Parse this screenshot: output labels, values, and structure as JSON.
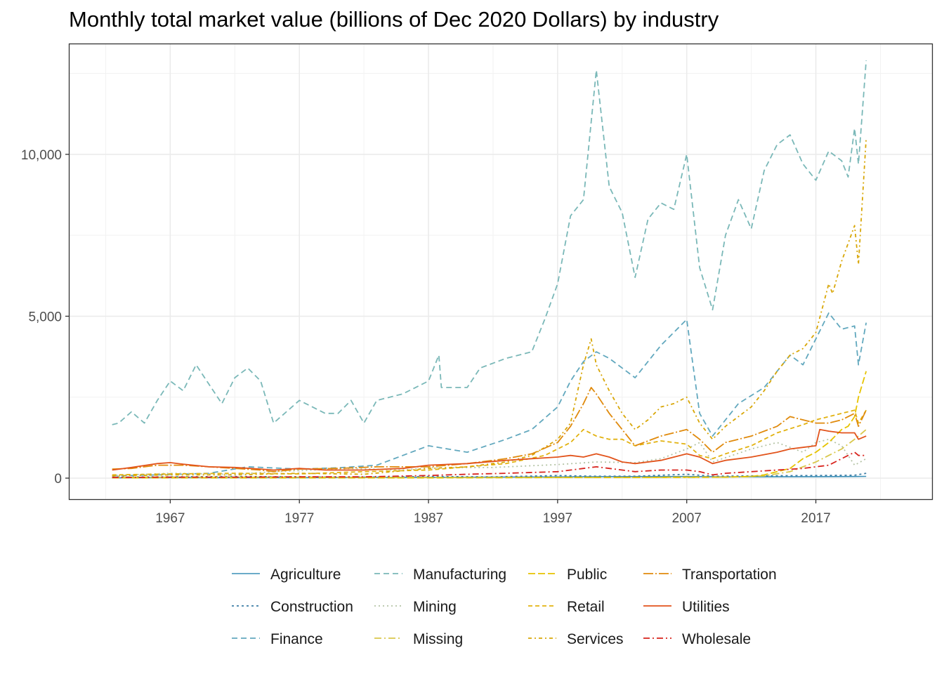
{
  "chart_data": {
    "type": "line",
    "title": "Monthly total market value (billions of Dec 2020 Dollars) by industry",
    "xlabel": "",
    "ylabel": "",
    "xlim": [
      1959.2,
      2026.0
    ],
    "ylim": [
      -650,
      13400
    ],
    "x_ticks": [
      1967,
      1977,
      1987,
      1997,
      2007,
      2017
    ],
    "x_tick_labels": [
      "1967",
      "1977",
      "1987",
      "1997",
      "2007",
      "2017"
    ],
    "y_ticks": [
      0,
      5000,
      10000
    ],
    "y_tick_labels": [
      "0",
      "5,000",
      "10,000"
    ],
    "grid": true,
    "legend_position": "bottom",
    "series": [
      {
        "name": "Agriculture",
        "color": "#3a8fb7",
        "dash": "",
        "width": 1.6,
        "x": [
          1962.5,
          1967,
          1977,
          1987,
          1997,
          2000,
          2007,
          2010,
          2017,
          2020,
          2020.9
        ],
        "y": [
          10,
          15,
          15,
          25,
          40,
          45,
          50,
          40,
          45,
          50,
          55
        ]
      },
      {
        "name": "Construction",
        "color": "#3d7ea6",
        "dash": "3,4",
        "width": 1.8,
        "x": [
          1962.5,
          1967,
          1972,
          1977,
          1982,
          1987,
          1992,
          1997,
          2000,
          2003,
          2007,
          2009,
          2012,
          2017,
          2020,
          2020.9
        ],
        "y": [
          30,
          40,
          50,
          40,
          30,
          50,
          40,
          80,
          60,
          60,
          120,
          60,
          70,
          80,
          90,
          150
        ]
      },
      {
        "name": "Finance",
        "color": "#62a8be",
        "dash": "8,5",
        "width": 1.8,
        "x": [
          1962.5,
          1966,
          1970,
          1973,
          1977,
          1980,
          1983,
          1987,
          1990,
          1993,
          1995,
          1997,
          1998,
          1999,
          2000,
          2001,
          2002,
          2003,
          2005,
          2007,
          2008,
          2009,
          2011,
          2013,
          2015,
          2016,
          2018,
          2019,
          2020,
          2020.3,
          2020.9
        ],
        "y": [
          70,
          100,
          150,
          350,
          280,
          320,
          400,
          1000,
          800,
          1200,
          1500,
          2200,
          3000,
          3600,
          3900,
          3700,
          3400,
          3100,
          4100,
          4900,
          2000,
          1300,
          2300,
          2800,
          3800,
          3500,
          5100,
          4600,
          4700,
          3500,
          4800
        ]
      },
      {
        "name": "Manufacturing",
        "color": "#7ab8b8",
        "dash": "8,5",
        "width": 1.8,
        "x": [
          1962.5,
          1963,
          1964,
          1965,
          1966,
          1967,
          1968,
          1969,
          1970,
          1971,
          1972,
          1973,
          1974,
          1975,
          1977,
          1979,
          1980,
          1981,
          1982,
          1983,
          1985,
          1987,
          1987.8,
          1988,
          1990,
          1991,
          1993,
          1995,
          1996,
          1997,
          1998,
          1999,
          2000,
          2001,
          2002,
          2003,
          2004,
          2005,
          2006,
          2007,
          2008,
          2009,
          2010,
          2011,
          2012,
          2013,
          2014,
          2015,
          2016,
          2017,
          2018,
          2019,
          2019.5,
          2020,
          2020.3,
          2020.9
        ],
        "y": [
          1650,
          1700,
          2050,
          1700,
          2400,
          3000,
          2700,
          3500,
          2900,
          2300,
          3100,
          3400,
          3000,
          1700,
          2400,
          2000,
          2000,
          2400,
          1700,
          2400,
          2600,
          3000,
          3800,
          2800,
          2800,
          3400,
          3700,
          3900,
          4900,
          6000,
          8100,
          8600,
          12600,
          9000,
          8200,
          6200,
          8000,
          8500,
          8300,
          10000,
          6500,
          5200,
          7500,
          8600,
          7700,
          9500,
          10300,
          10600,
          9700,
          9200,
          10100,
          9800,
          9300,
          10800,
          9700,
          12900
        ]
      },
      {
        "name": "Mining",
        "color": "#b5c4a6",
        "dash": "2,4",
        "width": 1.8,
        "x": [
          1962.5,
          1967,
          1972,
          1975,
          1977,
          1981,
          1985,
          1987,
          1992,
          1997,
          2000,
          2003,
          2005,
          2007,
          2008,
          2009,
          2012,
          2014,
          2016,
          2017,
          2018,
          2019,
          2020,
          2020.9
        ],
        "y": [
          80,
          150,
          120,
          200,
          230,
          300,
          250,
          320,
          330,
          420,
          500,
          480,
          600,
          900,
          1100,
          500,
          900,
          1100,
          800,
          1100,
          1200,
          1000,
          400,
          600
        ]
      },
      {
        "name": "Missing",
        "color": "#d9c84b",
        "dash": "10,4,2,4",
        "width": 1.8,
        "x": [
          1962.5,
          1967,
          1977,
          1987,
          1997,
          2007,
          2010,
          2013,
          2015,
          2017,
          2018,
          2019,
          2020,
          2020.9
        ],
        "y": [
          20,
          30,
          30,
          20,
          20,
          20,
          30,
          70,
          200,
          500,
          700,
          900,
          1200,
          1500
        ]
      },
      {
        "name": "Public",
        "color": "#e6c300",
        "dash": "10,4",
        "width": 1.8,
        "x": [
          1962.5,
          1967,
          1977,
          1987,
          1997,
          2003,
          2007,
          2010,
          2012,
          2013,
          2014,
          2015,
          2016,
          2017,
          2018,
          2018.5,
          2019,
          2019.5,
          2020,
          2020.3,
          2020.9
        ],
        "y": [
          10,
          10,
          10,
          10,
          20,
          20,
          30,
          30,
          50,
          100,
          200,
          300,
          600,
          800,
          1100,
          1300,
          1500,
          1600,
          1900,
          2500,
          3300
        ]
      },
      {
        "name": "Retail",
        "color": "#e2b210",
        "dash": "6,4",
        "width": 1.8,
        "x": [
          1962.5,
          1967,
          1972,
          1977,
          1982,
          1987,
          1990,
          1993,
          1996,
          1998,
          1999,
          2000,
          2001,
          2002,
          2003,
          2005,
          2007,
          2008,
          2009,
          2010,
          2012,
          2014,
          2016,
          2017,
          2018,
          2019,
          2020,
          2020.3,
          2020.9
        ],
        "y": [
          100,
          130,
          150,
          130,
          200,
          250,
          350,
          450,
          700,
          1100,
          1500,
          1300,
          1200,
          1200,
          1000,
          1150,
          1050,
          700,
          600,
          750,
          1000,
          1400,
          1650,
          1800,
          1900,
          2000,
          2100,
          1700,
          2100
        ]
      },
      {
        "name": "Services",
        "color": "#d8a606",
        "dash": "5,4,2,4",
        "width": 1.8,
        "x": [
          1962.5,
          1967,
          1972,
          1977,
          1982,
          1987,
          1990,
          1993,
          1995,
          1997,
          1998,
          1999,
          1999.6,
          2000,
          2001,
          2002,
          2003,
          2004,
          2005,
          2006,
          2007,
          2008,
          2009,
          2010,
          2012,
          2013,
          2014,
          2015,
          2016,
          2017,
          2018,
          2018.3,
          2019,
          2020,
          2020.3,
          2020.9
        ],
        "y": [
          70,
          100,
          100,
          150,
          120,
          300,
          350,
          500,
          700,
          1200,
          1700,
          3500,
          4300,
          3500,
          2700,
          2000,
          1500,
          1800,
          2200,
          2300,
          2500,
          1700,
          1200,
          1600,
          2200,
          2700,
          3300,
          3800,
          4000,
          4500,
          6000,
          5700,
          6700,
          7800,
          6600,
          10500
        ]
      },
      {
        "name": "Transportation",
        "color": "#e08a0c",
        "dash": "14,3,2,3",
        "width": 1.8,
        "x": [
          1962.5,
          1964,
          1966,
          1968,
          1970,
          1972,
          1974,
          1975,
          1977,
          1980,
          1983,
          1985,
          1987,
          1990,
          1993,
          1995,
          1997,
          1998,
          1999,
          1999.6,
          2000,
          2001,
          2002,
          2003,
          2005,
          2007,
          2008,
          2009,
          2010,
          2012,
          2014,
          2015,
          2016,
          2017,
          2018,
          2019,
          2020,
          2020.3,
          2020.9
        ],
        "y": [
          280,
          300,
          400,
          400,
          350,
          300,
          250,
          200,
          280,
          300,
          350,
          350,
          350,
          450,
          600,
          750,
          1100,
          1600,
          2300,
          2800,
          2600,
          2000,
          1500,
          1000,
          1300,
          1500,
          1200,
          800,
          1100,
          1300,
          1600,
          1900,
          1800,
          1700,
          1700,
          1800,
          2000,
          1600,
          2100
        ]
      },
      {
        "name": "Utilities",
        "color": "#e2531b",
        "dash": "",
        "width": 1.8,
        "x": [
          1962.5,
          1964,
          1966,
          1967,
          1968,
          1970,
          1972,
          1974,
          1975,
          1977,
          1979,
          1982,
          1985,
          1987,
          1990,
          1993,
          1995,
          1997,
          1998,
          1999,
          2000,
          2001,
          2002,
          2003,
          2005,
          2007,
          2008,
          2009,
          2010,
          2012,
          2014,
          2015,
          2016,
          2017,
          2017.3,
          2018,
          2019,
          2020,
          2020.3,
          2020.9
        ],
        "y": [
          250,
          330,
          450,
          480,
          430,
          350,
          330,
          280,
          250,
          300,
          250,
          250,
          300,
          400,
          450,
          550,
          600,
          650,
          700,
          650,
          750,
          650,
          500,
          450,
          550,
          750,
          650,
          450,
          550,
          650,
          800,
          900,
          950,
          1000,
          1500,
          1450,
          1400,
          1400,
          1200,
          1300
        ]
      },
      {
        "name": "Wholesale",
        "color": "#d8231d",
        "dash": "9,4,2,4",
        "width": 1.8,
        "x": [
          1962.5,
          1967,
          1972,
          1977,
          1982,
          1987,
          1990,
          1993,
          1997,
          1998,
          1999,
          2000,
          2001,
          2003,
          2005,
          2007,
          2008,
          2009,
          2010,
          2012,
          2014,
          2016,
          2017,
          2018,
          2019,
          2020,
          2020.3,
          2020.9
        ],
        "y": [
          20,
          30,
          30,
          40,
          40,
          80,
          120,
          150,
          200,
          250,
          300,
          350,
          300,
          200,
          250,
          250,
          200,
          100,
          150,
          200,
          250,
          300,
          350,
          400,
          600,
          800,
          700,
          700
        ]
      }
    ]
  }
}
